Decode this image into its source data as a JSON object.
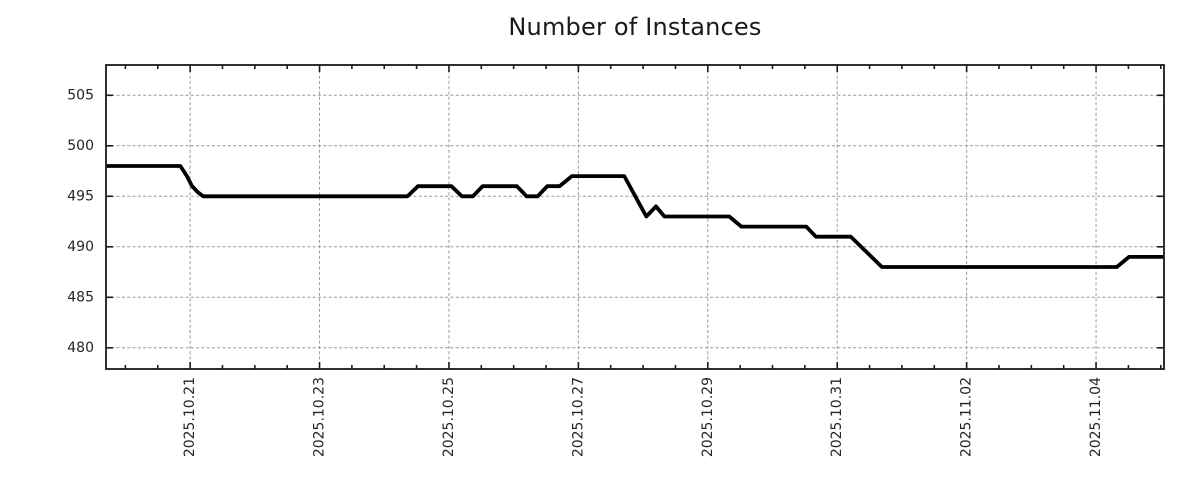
{
  "chart_data": {
    "type": "line",
    "title": "Number of Instances",
    "xlabel": "",
    "ylabel": "",
    "grid": true,
    "legend": false,
    "x_axis": {
      "lim": [
        19.7,
        36.05
      ],
      "unit": "day (October day-numbering, 32=Nov.01)",
      "major_ticks": [
        {
          "v": 21,
          "label": "2025.10.21"
        },
        {
          "v": 23,
          "label": "2025.10.23"
        },
        {
          "v": 25,
          "label": "2025.10.25"
        },
        {
          "v": 27,
          "label": "2025.10.27"
        },
        {
          "v": 29,
          "label": "2025.10.29"
        },
        {
          "v": 31,
          "label": "2025.10.31"
        },
        {
          "v": 33,
          "label": "2025.11.02"
        },
        {
          "v": 35,
          "label": "2025.11.04"
        }
      ],
      "minor_tick_start": 20.0,
      "minor_tick_step": 0.5,
      "minor_tick_end": 36.0
    },
    "y_axis": {
      "lim": [
        477.9,
        508.0
      ],
      "ticks": [
        480,
        485,
        490,
        495,
        500,
        505
      ]
    },
    "series": [
      {
        "name": "instances",
        "color": "#000000",
        "points": [
          [
            19.7,
            498
          ],
          [
            20.85,
            498
          ],
          [
            20.95,
            497
          ],
          [
            21.03,
            496
          ],
          [
            21.12,
            495.4
          ],
          [
            21.2,
            495
          ],
          [
            24.36,
            495
          ],
          [
            24.52,
            496
          ],
          [
            25.04,
            496
          ],
          [
            25.2,
            495
          ],
          [
            25.37,
            495
          ],
          [
            25.52,
            496
          ],
          [
            26.05,
            496
          ],
          [
            26.2,
            495
          ],
          [
            26.37,
            495
          ],
          [
            26.52,
            496
          ],
          [
            26.71,
            496
          ],
          [
            26.9,
            497
          ],
          [
            27.71,
            497
          ],
          [
            28.05,
            493
          ],
          [
            28.2,
            494
          ],
          [
            28.33,
            493
          ],
          [
            29.33,
            493
          ],
          [
            29.52,
            492
          ],
          [
            30.52,
            492
          ],
          [
            30.67,
            491
          ],
          [
            31.21,
            491
          ],
          [
            31.69,
            488
          ],
          [
            35.32,
            488
          ],
          [
            35.51,
            489
          ],
          [
            36.05,
            489
          ]
        ]
      }
    ],
    "colors": {
      "line": "#000000",
      "grid": "#999999",
      "border": "#1a1a1a",
      "text": "#262626",
      "background": "#ffffff"
    }
  }
}
